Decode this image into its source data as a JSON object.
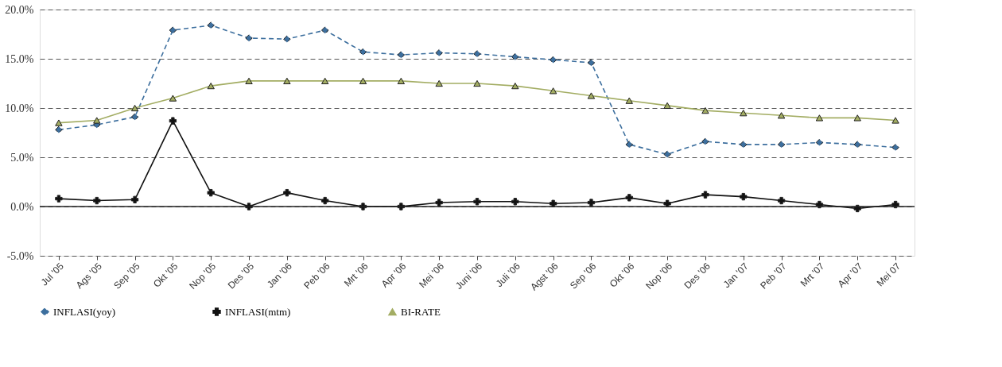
{
  "chart_data": {
    "type": "line",
    "categories": [
      "Jul '05",
      "Ags '05",
      "Sep '05",
      "Okt '05",
      "Nop '05",
      "Des '05",
      "Jan '06",
      "Peb '06",
      "Mrt '06",
      "Apr '06",
      "Mei '06",
      "Juni '06",
      "Juli '06",
      "Agst '06",
      "Sep '06",
      "Okt '06",
      "Nop '06",
      "Des '06",
      "Jan '07",
      "Peb '07",
      "Mrt '07",
      "Apr '07",
      "Mei 07"
    ],
    "series": [
      {
        "name": "INFLASI(yoy)",
        "color": "#3d6f9e",
        "marker": "diamond",
        "line_style": "dashed",
        "values": [
          7.8,
          8.3,
          9.1,
          17.9,
          18.4,
          17.1,
          17.0,
          17.9,
          15.7,
          15.4,
          15.6,
          15.5,
          15.2,
          14.9,
          14.6,
          6.3,
          5.3,
          6.6,
          6.3,
          6.3,
          6.5,
          6.3,
          6.0
        ]
      },
      {
        "name": "INFLASI(mtm)",
        "color": "#111111",
        "marker": "cross",
        "line_style": "solid",
        "values": [
          0.8,
          0.6,
          0.7,
          8.7,
          1.4,
          0.0,
          1.4,
          0.6,
          0.0,
          0.0,
          0.4,
          0.5,
          0.5,
          0.3,
          0.4,
          0.9,
          0.3,
          1.2,
          1.0,
          0.6,
          0.2,
          -0.2,
          0.2
        ]
      },
      {
        "name": "BI-RATE",
        "color": "#a3ad63",
        "marker": "triangle",
        "line_style": "solid",
        "values": [
          8.5,
          8.75,
          10.0,
          11.0,
          12.25,
          12.75,
          12.75,
          12.75,
          12.75,
          12.75,
          12.5,
          12.5,
          12.25,
          11.75,
          11.25,
          10.75,
          10.25,
          9.75,
          9.5,
          9.25,
          9.0,
          9.0,
          8.75
        ]
      }
    ],
    "ylim": [
      -5,
      20
    ],
    "yticks": [
      {
        "value": -5,
        "label": "-5.0%"
      },
      {
        "value": 0,
        "label": "0.0%"
      },
      {
        "value": 5,
        "label": "5.0%"
      },
      {
        "value": 10,
        "label": "10.0%"
      },
      {
        "value": 15,
        "label": "15.0%"
      },
      {
        "value": 20,
        "label": "20.0%"
      }
    ],
    "ref_lines": [
      {
        "axis": "y",
        "value": 0,
        "color": "#222222",
        "line_style": "solid"
      }
    ],
    "grid": "y",
    "legend": "bottom"
  }
}
